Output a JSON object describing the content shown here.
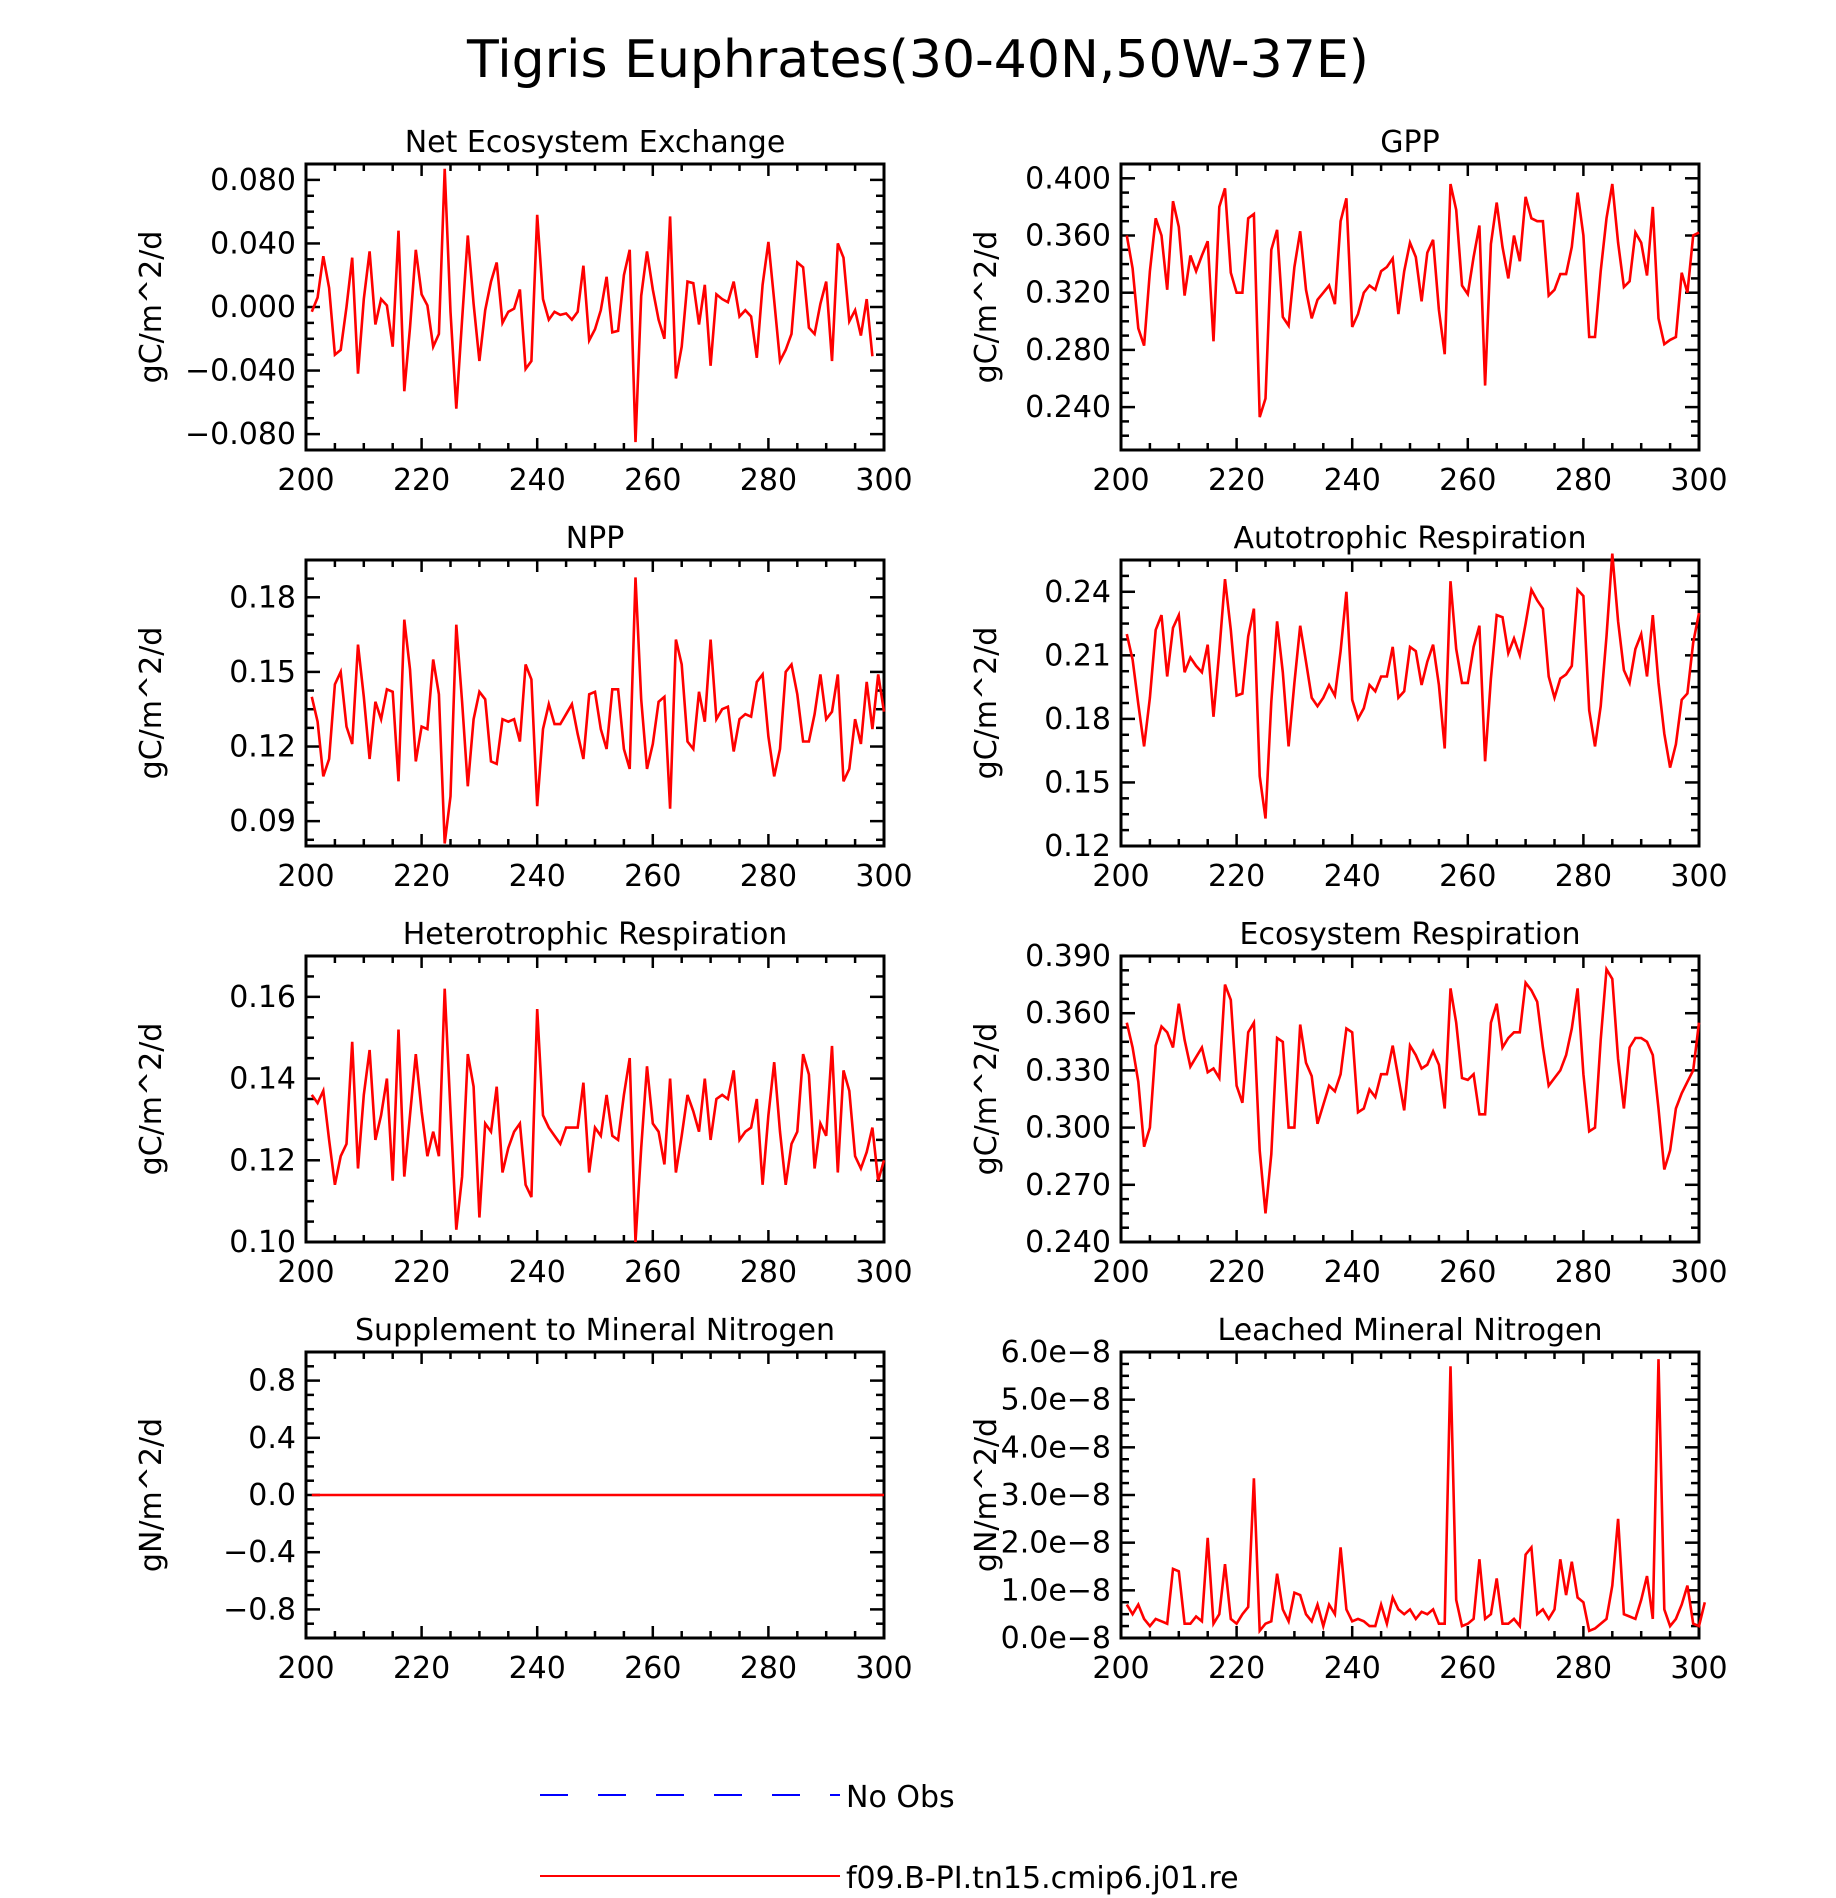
{
  "figure_title": "Tigris Euphrates(30-40N,50W-37E)",
  "legend": [
    {
      "label": "No Obs",
      "color": "#0000ff",
      "style": "dashed"
    },
    {
      "label": "f09.B-PI.tn15.cmip6.j01.re",
      "color": "#ff0000",
      "style": "solid"
    }
  ],
  "chart_data": [
    {
      "type": "line",
      "title": "Net Ecosystem Exchange",
      "ylabel": "gC/m^2/d",
      "xlim": [
        200,
        300
      ],
      "ylim": [
        -0.09,
        0.09
      ],
      "xticks": [
        200,
        220,
        240,
        260,
        280,
        300
      ],
      "xtick_labels": [
        "200",
        "220",
        "240",
        "260",
        "280",
        "300"
      ],
      "yticks": [
        -0.08,
        -0.04,
        0.0,
        0.04,
        0.08
      ],
      "ytick_labels": [
        "−0.080",
        "−0.040",
        "0.000",
        "0.040",
        "0.080"
      ],
      "x_start": 201,
      "series": [
        {
          "color": "#ff0000",
          "values": [
            -0.003,
            0.006,
            0.032,
            0.012,
            -0.03,
            -0.027,
            0.0,
            0.031,
            -0.042,
            0.005,
            0.035,
            -0.011,
            0.005,
            0.001,
            -0.025,
            0.048,
            -0.053,
            -0.013,
            0.036,
            0.008,
            0.001,
            -0.025,
            -0.017,
            0.087,
            -0.003,
            -0.064,
            -0.008,
            0.045,
            0.002,
            -0.034,
            -0.002,
            0.016,
            0.028,
            -0.01,
            -0.003,
            -0.001,
            0.011,
            -0.039,
            -0.034,
            0.058,
            0.005,
            -0.008,
            -0.003,
            -0.005,
            -0.004,
            -0.008,
            -0.003,
            0.026,
            -0.021,
            -0.014,
            -0.002,
            0.019,
            -0.016,
            -0.015,
            0.02,
            0.036,
            -0.085,
            0.007,
            0.035,
            0.011,
            -0.008,
            -0.02,
            0.057,
            -0.045,
            -0.025,
            0.016,
            0.015,
            -0.011,
            0.014,
            -0.037,
            0.008,
            0.005,
            0.003,
            0.016,
            -0.006,
            -0.002,
            -0.006,
            -0.032,
            0.014,
            0.041,
            0.004,
            -0.034,
            -0.027,
            -0.017,
            0.028,
            0.025,
            -0.013,
            -0.017,
            0.002,
            0.016,
            -0.034,
            0.04,
            0.031,
            -0.009,
            -0.002,
            -0.018,
            0.005,
            -0.031
          ]
        }
      ]
    },
    {
      "type": "line",
      "title": "GPP",
      "ylabel": "gC/m^2/d",
      "xlim": [
        200,
        300
      ],
      "ylim": [
        0.21,
        0.41
      ],
      "xticks": [
        200,
        220,
        240,
        260,
        280,
        300
      ],
      "xtick_labels": [
        "200",
        "220",
        "240",
        "260",
        "280",
        "300"
      ],
      "yticks": [
        0.24,
        0.28,
        0.32,
        0.36,
        0.4
      ],
      "ytick_labels": [
        "0.240",
        "0.280",
        "0.320",
        "0.360",
        "0.400"
      ],
      "x_start": 201,
      "series": [
        {
          "color": "#ff0000",
          "values": [
            0.36,
            0.337,
            0.295,
            0.283,
            0.335,
            0.372,
            0.36,
            0.322,
            0.384,
            0.366,
            0.318,
            0.346,
            0.335,
            0.346,
            0.356,
            0.286,
            0.38,
            0.393,
            0.334,
            0.32,
            0.32,
            0.372,
            0.375,
            0.233,
            0.246,
            0.35,
            0.364,
            0.303,
            0.297,
            0.338,
            0.363,
            0.322,
            0.302,
            0.315,
            0.32,
            0.325,
            0.312,
            0.37,
            0.386,
            0.296,
            0.305,
            0.32,
            0.325,
            0.322,
            0.335,
            0.338,
            0.344,
            0.305,
            0.335,
            0.355,
            0.345,
            0.314,
            0.348,
            0.357,
            0.308,
            0.277,
            0.396,
            0.378,
            0.325,
            0.319,
            0.345,
            0.367,
            0.255,
            0.354,
            0.383,
            0.352,
            0.33,
            0.36,
            0.342,
            0.387,
            0.372,
            0.37,
            0.37,
            0.318,
            0.322,
            0.333,
            0.333,
            0.352,
            0.39,
            0.36,
            0.289,
            0.289,
            0.335,
            0.372,
            0.396,
            0.355,
            0.324,
            0.328,
            0.362,
            0.355,
            0.332,
            0.38,
            0.302,
            0.284,
            0.287,
            0.289,
            0.334,
            0.32,
            0.36,
            0.362
          ]
        }
      ]
    },
    {
      "type": "line",
      "title": "NPP",
      "ylabel": "gC/m^2/d",
      "xlim": [
        200,
        300
      ],
      "ylim": [
        0.08,
        0.195
      ],
      "xticks": [
        200,
        220,
        240,
        260,
        280,
        300
      ],
      "xtick_labels": [
        "200",
        "220",
        "240",
        "260",
        "280",
        "300"
      ],
      "yticks": [
        0.09,
        0.12,
        0.15,
        0.18
      ],
      "ytick_labels": [
        "0.09",
        "0.12",
        "0.15",
        "0.18"
      ],
      "x_start": 201,
      "series": [
        {
          "color": "#ff0000",
          "values": [
            0.14,
            0.13,
            0.108,
            0.115,
            0.145,
            0.15,
            0.128,
            0.121,
            0.161,
            0.14,
            0.115,
            0.138,
            0.131,
            0.143,
            0.142,
            0.106,
            0.171,
            0.151,
            0.114,
            0.128,
            0.127,
            0.155,
            0.141,
            0.081,
            0.1,
            0.169,
            0.138,
            0.104,
            0.131,
            0.142,
            0.139,
            0.114,
            0.113,
            0.131,
            0.13,
            0.131,
            0.122,
            0.153,
            0.147,
            0.096,
            0.127,
            0.137,
            0.129,
            0.129,
            0.133,
            0.137,
            0.125,
            0.115,
            0.141,
            0.142,
            0.127,
            0.119,
            0.143,
            0.143,
            0.119,
            0.111,
            0.188,
            0.139,
            0.111,
            0.121,
            0.138,
            0.14,
            0.095,
            0.163,
            0.153,
            0.122,
            0.119,
            0.142,
            0.13,
            0.163,
            0.131,
            0.135,
            0.136,
            0.118,
            0.131,
            0.133,
            0.132,
            0.146,
            0.149,
            0.124,
            0.108,
            0.119,
            0.15,
            0.153,
            0.141,
            0.122,
            0.122,
            0.133,
            0.149,
            0.131,
            0.134,
            0.149,
            0.106,
            0.111,
            0.131,
            0.121,
            0.146,
            0.127,
            0.149,
            0.134
          ]
        }
      ]
    },
    {
      "type": "line",
      "title": "Autotrophic Respiration",
      "ylabel": "gC/m^2/d",
      "xlim": [
        200,
        300
      ],
      "ylim": [
        0.12,
        0.255
      ],
      "xticks": [
        200,
        220,
        240,
        260,
        280,
        300
      ],
      "xtick_labels": [
        "200",
        "220",
        "240",
        "260",
        "280",
        "300"
      ],
      "yticks": [
        0.12,
        0.15,
        0.18,
        0.21,
        0.24
      ],
      "ytick_labels": [
        "0.12",
        "0.15",
        "0.18",
        "0.21",
        "0.24"
      ],
      "x_start": 201,
      "series": [
        {
          "color": "#ff0000",
          "values": [
            0.22,
            0.208,
            0.187,
            0.167,
            0.19,
            0.222,
            0.229,
            0.2,
            0.223,
            0.229,
            0.202,
            0.209,
            0.205,
            0.202,
            0.215,
            0.181,
            0.212,
            0.246,
            0.222,
            0.191,
            0.192,
            0.219,
            0.232,
            0.153,
            0.133,
            0.188,
            0.226,
            0.202,
            0.167,
            0.197,
            0.224,
            0.207,
            0.19,
            0.186,
            0.19,
            0.196,
            0.191,
            0.212,
            0.24,
            0.189,
            0.18,
            0.185,
            0.196,
            0.193,
            0.2,
            0.2,
            0.214,
            0.19,
            0.193,
            0.214,
            0.212,
            0.196,
            0.207,
            0.215,
            0.196,
            0.166,
            0.245,
            0.213,
            0.197,
            0.197,
            0.214,
            0.224,
            0.16,
            0.199,
            0.229,
            0.228,
            0.211,
            0.218,
            0.21,
            0.225,
            0.241,
            0.236,
            0.232,
            0.2,
            0.19,
            0.199,
            0.201,
            0.205,
            0.241,
            0.238,
            0.184,
            0.167,
            0.186,
            0.219,
            0.258,
            0.226,
            0.203,
            0.197,
            0.213,
            0.22,
            0.2,
            0.229,
            0.197,
            0.173,
            0.157,
            0.168,
            0.189,
            0.192,
            0.216,
            0.23
          ]
        }
      ]
    },
    {
      "type": "line",
      "title": "Heterotrophic Respiration",
      "ylabel": "gC/m^2/d",
      "xlim": [
        200,
        300
      ],
      "ylim": [
        0.1,
        0.17
      ],
      "xticks": [
        200,
        220,
        240,
        260,
        280,
        300
      ],
      "xtick_labels": [
        "200",
        "220",
        "240",
        "260",
        "280",
        "300"
      ],
      "yticks": [
        0.1,
        0.12,
        0.14,
        0.16
      ],
      "ytick_labels": [
        "0.10",
        "0.12",
        "0.14",
        "0.16"
      ],
      "x_start": 201,
      "series": [
        {
          "color": "#ff0000",
          "values": [
            0.136,
            0.134,
            0.137,
            0.125,
            0.114,
            0.121,
            0.124,
            0.149,
            0.118,
            0.136,
            0.147,
            0.125,
            0.131,
            0.14,
            0.115,
            0.152,
            0.116,
            0.131,
            0.146,
            0.132,
            0.121,
            0.127,
            0.121,
            0.162,
            0.132,
            0.103,
            0.116,
            0.146,
            0.138,
            0.106,
            0.129,
            0.127,
            0.138,
            0.117,
            0.123,
            0.127,
            0.129,
            0.114,
            0.111,
            0.157,
            0.131,
            0.128,
            0.126,
            0.124,
            0.128,
            0.128,
            0.128,
            0.139,
            0.117,
            0.128,
            0.126,
            0.136,
            0.126,
            0.125,
            0.136,
            0.145,
            0.1,
            0.123,
            0.143,
            0.129,
            0.127,
            0.119,
            0.14,
            0.117,
            0.126,
            0.136,
            0.132,
            0.127,
            0.14,
            0.125,
            0.135,
            0.136,
            0.135,
            0.142,
            0.125,
            0.127,
            0.128,
            0.135,
            0.114,
            0.131,
            0.144,
            0.127,
            0.114,
            0.124,
            0.127,
            0.146,
            0.141,
            0.118,
            0.129,
            0.126,
            0.148,
            0.117,
            0.142,
            0.137,
            0.121,
            0.118,
            0.122,
            0.128,
            0.115,
            0.12
          ]
        }
      ]
    },
    {
      "type": "line",
      "title": "Ecosystem Respiration",
      "ylabel": "gC/m^2/d",
      "xlim": [
        200,
        300
      ],
      "ylim": [
        0.24,
        0.39
      ],
      "xticks": [
        200,
        220,
        240,
        260,
        280,
        300
      ],
      "xtick_labels": [
        "200",
        "220",
        "240",
        "260",
        "280",
        "300"
      ],
      "yticks": [
        0.24,
        0.27,
        0.3,
        0.33,
        0.36,
        0.39
      ],
      "ytick_labels": [
        "0.240",
        "0.270",
        "0.300",
        "0.330",
        "0.360",
        "0.390"
      ],
      "x_start": 201,
      "series": [
        {
          "color": "#ff0000",
          "values": [
            0.355,
            0.342,
            0.324,
            0.29,
            0.3,
            0.343,
            0.353,
            0.35,
            0.342,
            0.365,
            0.346,
            0.332,
            0.337,
            0.342,
            0.329,
            0.331,
            0.326,
            0.375,
            0.367,
            0.322,
            0.313,
            0.35,
            0.355,
            0.288,
            0.255,
            0.286,
            0.347,
            0.345,
            0.3,
            0.3,
            0.354,
            0.334,
            0.327,
            0.302,
            0.312,
            0.322,
            0.319,
            0.328,
            0.352,
            0.35,
            0.308,
            0.31,
            0.32,
            0.316,
            0.328,
            0.328,
            0.343,
            0.326,
            0.309,
            0.343,
            0.338,
            0.331,
            0.333,
            0.34,
            0.333,
            0.31,
            0.373,
            0.355,
            0.326,
            0.325,
            0.328,
            0.307,
            0.307,
            0.355,
            0.365,
            0.342,
            0.347,
            0.35,
            0.35,
            0.376,
            0.372,
            0.366,
            0.342,
            0.322,
            0.326,
            0.33,
            0.338,
            0.352,
            0.373,
            0.328,
            0.298,
            0.3,
            0.346,
            0.383,
            0.378,
            0.336,
            0.31,
            0.342,
            0.347,
            0.347,
            0.345,
            0.338,
            0.31,
            0.278,
            0.288,
            0.31,
            0.318,
            0.324,
            0.33,
            0.355
          ]
        }
      ]
    },
    {
      "type": "line",
      "title": "Supplement to Mineral Nitrogen",
      "ylabel": "gN/m^2/d",
      "xlim": [
        200,
        300
      ],
      "ylim": [
        -1.0,
        1.0
      ],
      "xticks": [
        200,
        220,
        240,
        260,
        280,
        300
      ],
      "xtick_labels": [
        "200",
        "220",
        "240",
        "260",
        "280",
        "300"
      ],
      "yticks": [
        -0.8,
        -0.4,
        0.0,
        0.4,
        0.8
      ],
      "ytick_labels": [
        "−0.8",
        "−0.4",
        "0.0",
        "0.4",
        "0.8"
      ],
      "x_start": 201,
      "series": [
        {
          "color": "#ff0000",
          "constant": 0.0
        }
      ]
    },
    {
      "type": "line",
      "title": "Leached Mineral Nitrogen",
      "ylabel": "gN/m^2/d",
      "xlim": [
        200,
        300
      ],
      "ylim": [
        0.0,
        6e-08
      ],
      "xticks": [
        200,
        220,
        240,
        260,
        280,
        300
      ],
      "xtick_labels": [
        "200",
        "220",
        "240",
        "260",
        "280",
        "300"
      ],
      "yticks": [
        0.0,
        1e-08,
        2e-08,
        3e-08,
        4e-08,
        5e-08,
        6e-08
      ],
      "ytick_labels": [
        "0.0e−8",
        "1.0e−8",
        "2.0e−8",
        "3.0e−8",
        "4.0e−8",
        "5.0e−8",
        "6.0e−8"
      ],
      "x_start": 201,
      "series": [
        {
          "color": "#ff0000",
          "values": [
            7e-09,
            5e-09,
            7e-09,
            4e-09,
            2.5e-09,
            4e-09,
            3.5e-09,
            3e-09,
            1.45e-08,
            1.4e-08,
            3e-09,
            3e-09,
            4.5e-09,
            3.5e-09,
            2.1e-08,
            3e-09,
            5e-09,
            1.55e-08,
            4e-09,
            3e-09,
            5e-09,
            6.5e-09,
            3.35e-08,
            1.5e-09,
            3e-09,
            3.5e-09,
            1.35e-08,
            6e-09,
            3.5e-09,
            9.5e-09,
            9e-09,
            5e-09,
            3.5e-09,
            7e-09,
            2.5e-09,
            7e-09,
            5e-09,
            1.9e-08,
            6e-09,
            3.5e-09,
            4e-09,
            3.5e-09,
            2.5e-09,
            2.5e-09,
            7e-09,
            3e-09,
            8.5e-09,
            6e-09,
            5e-09,
            6e-09,
            4e-09,
            5.5e-09,
            5e-09,
            6e-09,
            3e-09,
            3e-09,
            5.7e-08,
            8e-09,
            2.5e-09,
            3e-09,
            4e-09,
            1.65e-08,
            4e-09,
            5e-09,
            1.25e-08,
            3e-09,
            3e-09,
            4e-09,
            2.5e-09,
            1.75e-08,
            1.9e-08,
            5e-09,
            6e-09,
            4e-09,
            6e-09,
            1.65e-08,
            9e-09,
            1.6e-08,
            8.5e-09,
            7.5e-09,
            1.5e-09,
            2e-09,
            3e-09,
            4e-09,
            1.1e-08,
            2.5e-08,
            5e-09,
            4.5e-09,
            4e-09,
            8e-09,
            1.3e-08,
            4e-09,
            5.85e-08,
            6e-09,
            2.5e-09,
            4e-09,
            7e-09,
            1.1e-08,
            3e-09,
            2.5e-09,
            7.5e-09
          ]
        }
      ]
    }
  ]
}
